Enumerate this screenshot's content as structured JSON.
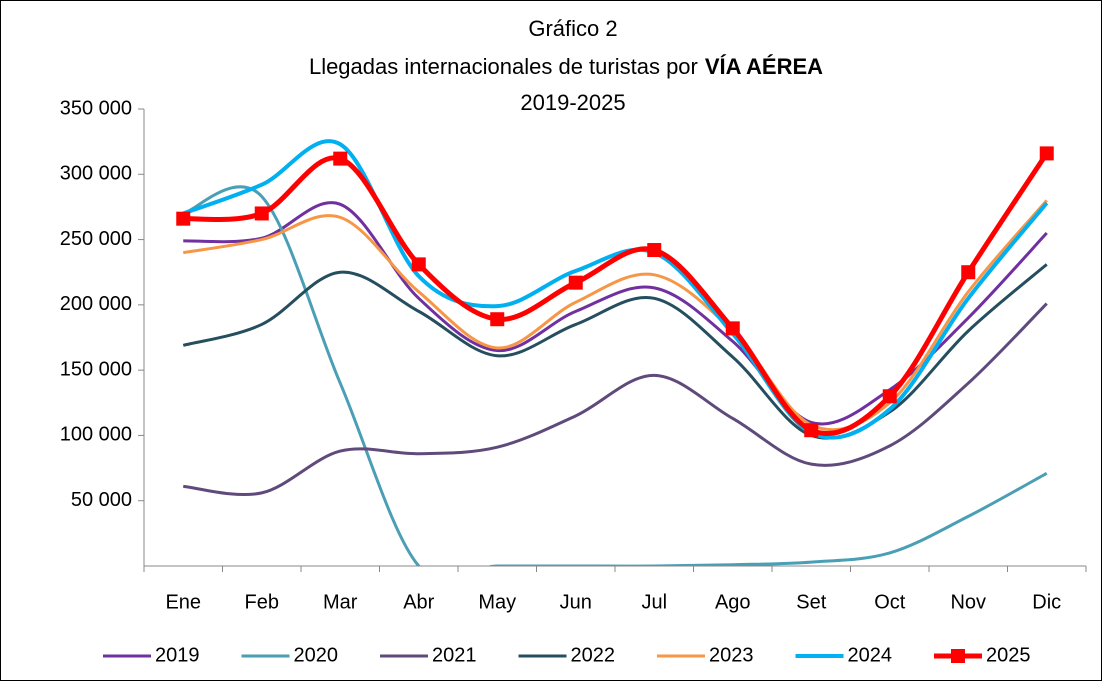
{
  "chart_data": {
    "type": "line",
    "title": "Gráfico 2",
    "subtitle": "Llegadas internacionales de turistas por",
    "subtitle_bold": "VÍA AÉREA",
    "period": "2019-2025",
    "categories": [
      "Ene",
      "Feb",
      "Mar",
      "Abr",
      "May",
      "Jun",
      "Jul",
      "Ago",
      "Set",
      "Oct",
      "Nov",
      "Dic"
    ],
    "ylim": [
      0,
      350000
    ],
    "yticks": [
      {
        "value": 50000,
        "label": "50 000"
      },
      {
        "value": 100000,
        "label": "100 000"
      },
      {
        "value": 150000,
        "label": "150 000"
      },
      {
        "value": 200000,
        "label": "200 000"
      },
      {
        "value": 250000,
        "label": "250 000"
      },
      {
        "value": 300000,
        "label": "300 000"
      },
      {
        "value": 350000,
        "label": "350 000"
      }
    ],
    "smooth": true,
    "series": [
      {
        "name": "2019",
        "color": "#7030a0",
        "width": 3,
        "values": [
          249000,
          251000,
          277000,
          205000,
          165000,
          195000,
          213000,
          172000,
          110000,
          135000,
          190000,
          255000
        ]
      },
      {
        "name": "2020",
        "color": "#4a9fb5",
        "width": 3,
        "values": [
          270000,
          283000,
          140000,
          0,
          0,
          0,
          0,
          1000,
          3000,
          10000,
          38000,
          71000
        ]
      },
      {
        "name": "2021",
        "color": "#604a7b",
        "width": 3,
        "values": [
          61000,
          56000,
          88000,
          86000,
          91000,
          115000,
          146000,
          113000,
          78000,
          92000,
          140000,
          201000
        ]
      },
      {
        "name": "2022",
        "color": "#254e5e",
        "width": 3,
        "values": [
          169000,
          185000,
          225000,
          195000,
          161000,
          185000,
          205000,
          160000,
          100000,
          118000,
          180000,
          231000
        ]
      },
      {
        "name": "2023",
        "color": "#f79646",
        "width": 3,
        "values": [
          240000,
          250000,
          267000,
          210000,
          167000,
          202000,
          223000,
          180000,
          108000,
          125000,
          210000,
          280000
        ]
      },
      {
        "name": "2024",
        "color": "#00b0f0",
        "width": 4,
        "values": [
          270000,
          292000,
          323000,
          222000,
          199000,
          226000,
          240000,
          178000,
          102000,
          120000,
          205000,
          278000
        ]
      },
      {
        "name": "2025",
        "color": "#ff0000",
        "width": 5,
        "markers": true,
        "values": [
          266000,
          270000,
          312000,
          231000,
          189000,
          217000,
          242000,
          182000,
          104000,
          130000,
          225000,
          316000
        ]
      }
    ]
  }
}
